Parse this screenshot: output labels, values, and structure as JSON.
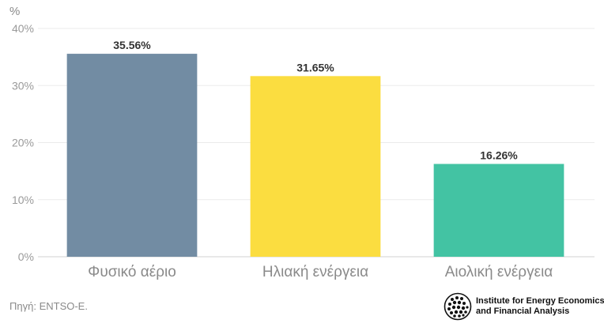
{
  "chart_data": {
    "type": "bar",
    "unit": "%",
    "categories": [
      "Φυσικό αέριο",
      "Ηλιακή ενέργεια",
      "Αιολική ενέργεια"
    ],
    "values": [
      35.56,
      31.65,
      16.26
    ],
    "value_labels": [
      "35.56%",
      "31.65%",
      "16.26%"
    ],
    "bar_colors": [
      "#728ca3",
      "#fbdd40",
      "#43c3a3"
    ],
    "ylim": [
      0,
      40
    ],
    "yticks": [
      0,
      10,
      20,
      30,
      40
    ],
    "ytick_labels": [
      "0%",
      "10%",
      "20%",
      "30%",
      "40%"
    ],
    "grid": true,
    "title": "",
    "xlabel": "",
    "ylabel": ""
  },
  "footer": {
    "source": "Πηγή: ENTSO-E.",
    "logo_line1": "Institute for Energy Economics",
    "logo_line2": "and Financial Analysis"
  }
}
